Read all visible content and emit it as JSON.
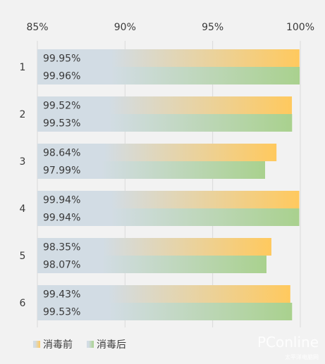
{
  "chart_data": {
    "type": "bar",
    "orientation": "horizontal",
    "categories": [
      "1",
      "2",
      "3",
      "4",
      "5",
      "6"
    ],
    "series": [
      {
        "name": "消毒前",
        "values": [
          99.95,
          99.52,
          98.64,
          99.94,
          98.35,
          99.43
        ],
        "labels": [
          "99.95%",
          "99.52%",
          "98.64%",
          "99.94%",
          "98.35%",
          "99.43%"
        ],
        "color": "#ffc95e"
      },
      {
        "name": "消毒后",
        "values": [
          99.96,
          99.53,
          97.99,
          99.94,
          98.07,
          99.53
        ],
        "labels": [
          "99.96%",
          "99.53%",
          "97.99%",
          "99.94%",
          "98.07%",
          "99.53%"
        ],
        "color": "#a9d18e"
      }
    ],
    "xlim": [
      85,
      100
    ],
    "x_ticks": [
      85,
      90,
      95,
      100
    ],
    "x_tick_labels": [
      "85%",
      "90%",
      "95%",
      "100%"
    ],
    "bar_gradient_start_color": "#d2dce4",
    "grid": true,
    "legend_position": "bottom-left",
    "title": "",
    "xlabel": "",
    "ylabel": ""
  },
  "watermark": {
    "text": "PConline",
    "subtext": "太平洋电脑网"
  }
}
